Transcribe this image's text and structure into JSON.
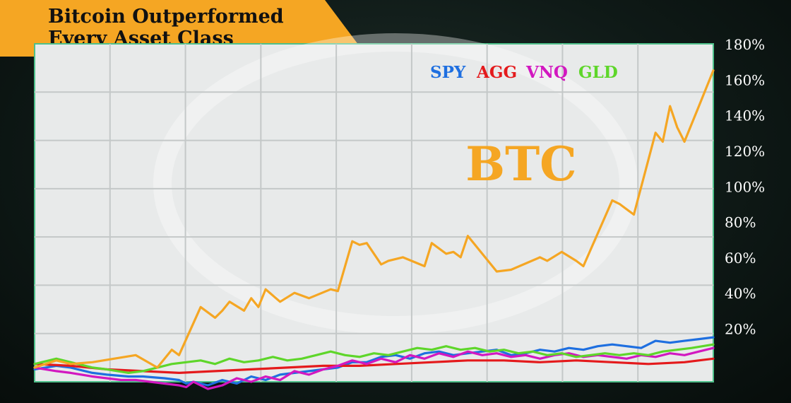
{
  "title": {
    "line1": "Bitcoin Outperformed",
    "line2": "Every Asset Class"
  },
  "chart_data": {
    "type": "line",
    "title": "Bitcoin Outperformed Every Asset Class",
    "ylim": [
      -10,
      180
    ],
    "yticks": [
      "20%",
      "40%",
      "60%",
      "80%",
      "100%",
      "120%",
      "140%",
      "160%",
      "180%"
    ],
    "ytick_values": [
      20,
      40,
      60,
      80,
      100,
      120,
      140,
      160,
      180
    ],
    "grid": true,
    "legend_position": "top-center",
    "highlight_label": "BTC",
    "series": [
      {
        "name": "BTC",
        "color": "#f5a623",
        "x": [
          0,
          3,
          5,
          8,
          14,
          17,
          19,
          20,
          23,
          25,
          26,
          27,
          29,
          30,
          31,
          32,
          34,
          36,
          38,
          41,
          42,
          44,
          45,
          46,
          48,
          49,
          51,
          54,
          55,
          57,
          58,
          59,
          60,
          64,
          66,
          70,
          71,
          73,
          75,
          76,
          80,
          81,
          83,
          86,
          87,
          88,
          89,
          90,
          92,
          94
        ],
        "values": [
          -2,
          2,
          0,
          1,
          5,
          -2,
          8,
          5,
          32,
          26,
          30,
          35,
          30,
          37,
          32,
          42,
          35,
          40,
          37,
          42,
          41,
          69,
          67,
          68,
          56,
          58,
          60,
          55,
          68,
          62,
          63,
          60,
          72,
          52,
          53,
          60,
          58,
          63,
          58,
          55,
          92,
          90,
          84,
          130,
          125,
          145,
          133,
          125,
          145,
          165
        ]
      },
      {
        "name": "SPY",
        "color": "#1e6fe0",
        "x": [
          0,
          3,
          5,
          8,
          10,
          13,
          15,
          18,
          20,
          21,
          22,
          24,
          26,
          28,
          30,
          32,
          34,
          36,
          38,
          40,
          42,
          44,
          46,
          48,
          50,
          52,
          54,
          56,
          58,
          60,
          62,
          64,
          66,
          68,
          70,
          72,
          74,
          76,
          78,
          80,
          82,
          84,
          86,
          88,
          90,
          92,
          94
        ],
        "values": [
          -3,
          -1,
          -2,
          -5,
          -6,
          -7,
          -7,
          -8,
          -9,
          -11,
          -10,
          -12,
          -9,
          -11,
          -7,
          -9,
          -6,
          -5,
          -4,
          -3,
          -2,
          1,
          1,
          4,
          5,
          3,
          6,
          7,
          5,
          6,
          7,
          8,
          5,
          6,
          8,
          7,
          9,
          8,
          10,
          11,
          10,
          9,
          13,
          12,
          13,
          14,
          15
        ]
      },
      {
        "name": "AGG",
        "color": "#e41a1c",
        "x": [
          0,
          5,
          10,
          15,
          20,
          25,
          30,
          35,
          40,
          45,
          50,
          55,
          60,
          65,
          70,
          75,
          80,
          85,
          90,
          94
        ],
        "values": [
          0,
          -1,
          -3,
          -4,
          -5,
          -4,
          -3,
          -2,
          -1,
          -1,
          0,
          1,
          2,
          2,
          1,
          2,
          1,
          0,
          1,
          3
        ]
      },
      {
        "name": "VNQ",
        "color": "#d218c0",
        "x": [
          0,
          3,
          5,
          8,
          10,
          12,
          14,
          16,
          18,
          20,
          21,
          22,
          24,
          26,
          28,
          30,
          32,
          34,
          36,
          38,
          40,
          42,
          44,
          46,
          48,
          50,
          52,
          54,
          56,
          58,
          60,
          62,
          64,
          66,
          68,
          70,
          72,
          74,
          76,
          78,
          80,
          82,
          84,
          86,
          88,
          90,
          92,
          94
        ],
        "values": [
          -2,
          -4,
          -5,
          -7,
          -8,
          -9,
          -9,
          -10,
          -11,
          -12,
          -13,
          -10,
          -14,
          -12,
          -8,
          -10,
          -7,
          -9,
          -4,
          -6,
          -3,
          -1,
          2,
          0,
          3,
          1,
          5,
          3,
          6,
          4,
          7,
          5,
          6,
          4,
          5,
          3,
          5,
          6,
          4,
          5,
          4,
          3,
          5,
          4,
          6,
          5,
          7,
          9
        ]
      },
      {
        "name": "GLD",
        "color": "#5ed62a",
        "x": [
          0,
          3,
          5,
          8,
          10,
          13,
          15,
          17,
          19,
          21,
          23,
          25,
          27,
          29,
          31,
          33,
          35,
          37,
          39,
          41,
          43,
          45,
          47,
          49,
          51,
          53,
          55,
          57,
          59,
          61,
          63,
          65,
          67,
          69,
          71,
          73,
          75,
          77,
          79,
          81,
          83,
          85,
          87,
          89,
          91,
          94
        ],
        "values": [
          0,
          3,
          1,
          -2,
          -3,
          -5,
          -4,
          -2,
          0,
          1,
          2,
          0,
          3,
          1,
          2,
          4,
          2,
          3,
          5,
          7,
          5,
          4,
          6,
          5,
          7,
          9,
          8,
          10,
          8,
          9,
          7,
          8,
          6,
          7,
          5,
          6,
          4,
          5,
          6,
          5,
          6,
          5,
          7,
          8,
          9,
          11
        ]
      }
    ]
  }
}
